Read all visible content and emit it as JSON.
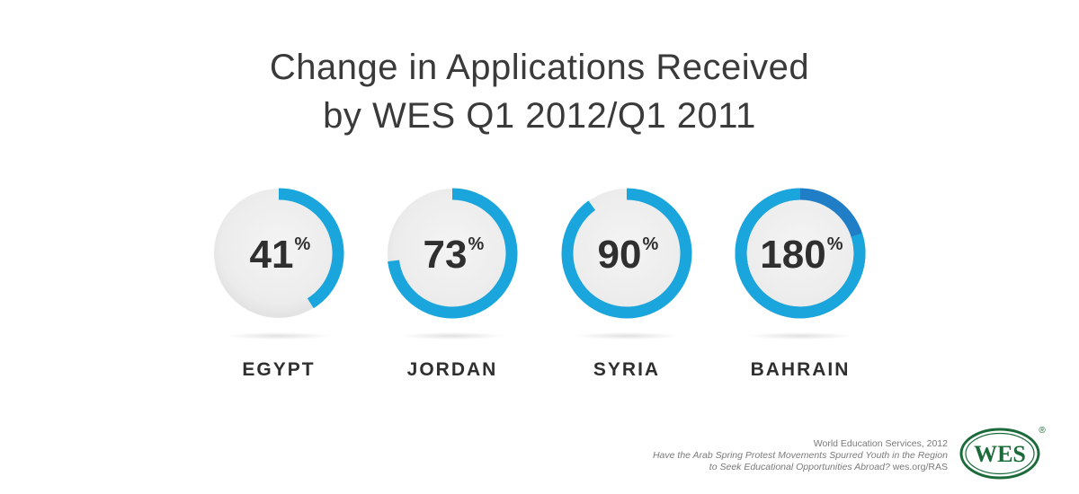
{
  "chart_data": {
    "type": "donut",
    "title_line1": "Change in Applications Received",
    "title_line2": "by WES Q1 2012/Q1 2011",
    "unit": "%",
    "items": [
      {
        "category": "EGYPT",
        "value": 41,
        "value_label": "41",
        "color": "#1aa6dc",
        "overflow_color": "#1f7ec6"
      },
      {
        "category": "JORDAN",
        "value": 73,
        "value_label": "73",
        "color": "#1aa6dc",
        "overflow_color": "#1f7ec6"
      },
      {
        "category": "SYRIA",
        "value": 90,
        "value_label": "90",
        "color": "#1aa6dc",
        "overflow_color": "#1f7ec6"
      },
      {
        "category": "BAHRAIN",
        "value": 180,
        "value_label": "180",
        "color": "#1aa6dc",
        "overflow_color": "#1f7ec6"
      }
    ],
    "track_color": "#ececec"
  },
  "footer": {
    "line1": "World Education Services, 2012",
    "line2": "Have the Arab Spring Protest Movements Spurred Youth in the Region",
    "line3_italic": "to Seek Educational Opportunities Abroad?",
    "line3_plain": " wes.org/RAS"
  },
  "logo": {
    "text": "WES",
    "registered": "®",
    "color": "#1b6b3a"
  }
}
